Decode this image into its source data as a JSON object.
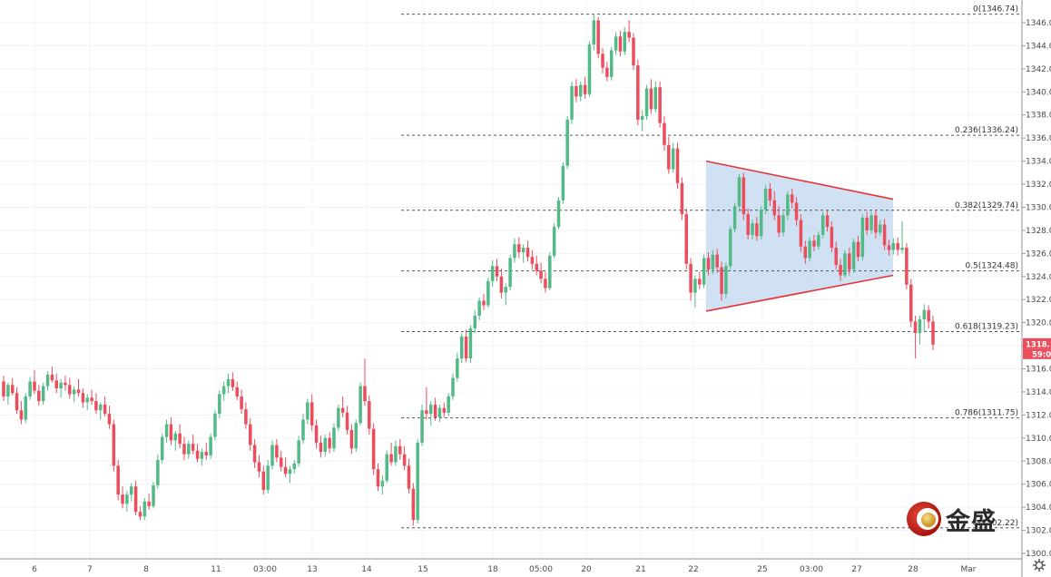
{
  "chart_data": {
    "type": "candlestick",
    "title": "",
    "y_axis": {
      "ylim": [
        1299.5,
        1348.4
      ],
      "ticks": [
        1300,
        1302,
        1304,
        1306,
        1308,
        1310,
        1312,
        1314,
        1316,
        1318,
        1320,
        1322,
        1324,
        1326,
        1328,
        1330,
        1332,
        1334,
        1336,
        1338,
        1340,
        1342,
        1344,
        1346
      ],
      "tick_labels": [
        "1300.00",
        "1302.00",
        "1304.00",
        "1306.00",
        "1308.00",
        "1310.00",
        "1312.00",
        "1314.00",
        "1316.00",
        "1318.00",
        "1320.00",
        "1322.00",
        "1324.00",
        "1326.00",
        "1328.00",
        "1330.00",
        "1332.00",
        "1334.00",
        "1336.00",
        "1338.00",
        "1340.00",
        "1342.00",
        "1344.00",
        "1346.00"
      ]
    },
    "x_axis": {
      "tick_labels": [
        "6",
        "7",
        "8",
        "11",
        "03:00",
        "13",
        "14",
        "15",
        "18",
        "05:00",
        "20",
        "21",
        "22",
        "25",
        "03:00",
        "27",
        "28",
        "Mar"
      ]
    },
    "candles_ohlc": [
      [
        1314.9,
        1315.4,
        1313.2,
        1313.6
      ],
      [
        1313.6,
        1314.8,
        1312.9,
        1314.6
      ],
      [
        1314.6,
        1315.2,
        1313.7,
        1313.9
      ],
      [
        1313.9,
        1314.4,
        1312.1,
        1312.4
      ],
      [
        1312.4,
        1313.2,
        1311.2,
        1311.6
      ],
      [
        1311.6,
        1313.9,
        1311.3,
        1313.6
      ],
      [
        1313.6,
        1315.3,
        1313.3,
        1314.9
      ],
      [
        1314.9,
        1315.9,
        1313.8,
        1314.1
      ],
      [
        1314.1,
        1314.6,
        1312.8,
        1313.2
      ],
      [
        1313.2,
        1314.8,
        1312.9,
        1314.5
      ],
      [
        1314.5,
        1315.8,
        1314.1,
        1315.5
      ],
      [
        1315.5,
        1316.2,
        1314.8,
        1315.0
      ],
      [
        1315.0,
        1315.6,
        1313.9,
        1314.3
      ],
      [
        1314.3,
        1315.1,
        1313.5,
        1314.8
      ],
      [
        1314.8,
        1315.4,
        1314.1,
        1314.6
      ],
      [
        1314.6,
        1315.2,
        1313.4,
        1313.8
      ],
      [
        1313.8,
        1314.5,
        1313.1,
        1314.2
      ],
      [
        1314.2,
        1315.1,
        1313.6,
        1313.9
      ],
      [
        1313.9,
        1314.3,
        1312.6,
        1313.1
      ],
      [
        1313.1,
        1313.8,
        1312.4,
        1313.5
      ],
      [
        1313.5,
        1314.2,
        1312.9,
        1313.2
      ],
      [
        1313.2,
        1313.9,
        1312.1,
        1312.4
      ],
      [
        1312.4,
        1313.1,
        1311.6,
        1312.9
      ],
      [
        1312.9,
        1313.6,
        1311.9,
        1312.1
      ],
      [
        1312.1,
        1312.8,
        1310.8,
        1311.2
      ],
      [
        1311.2,
        1311.6,
        1307.1,
        1307.6
      ],
      [
        1307.6,
        1308.1,
        1304.6,
        1305.1
      ],
      [
        1305.1,
        1305.8,
        1303.9,
        1304.3
      ],
      [
        1304.3,
        1305.4,
        1303.6,
        1305.1
      ],
      [
        1305.1,
        1306.1,
        1304.5,
        1305.8
      ],
      [
        1305.8,
        1306.3,
        1303.3,
        1303.6
      ],
      [
        1303.6,
        1304.1,
        1302.9,
        1303.2
      ],
      [
        1303.2,
        1304.8,
        1302.9,
        1304.5
      ],
      [
        1304.5,
        1305.2,
        1303.8,
        1304.1
      ],
      [
        1304.1,
        1306.2,
        1303.9,
        1305.9
      ],
      [
        1305.9,
        1308.6,
        1305.6,
        1308.1
      ],
      [
        1308.1,
        1310.4,
        1307.8,
        1310.1
      ],
      [
        1310.1,
        1311.6,
        1309.6,
        1311.2
      ],
      [
        1311.2,
        1311.8,
        1309.4,
        1309.8
      ],
      [
        1309.8,
        1310.6,
        1308.9,
        1310.4
      ],
      [
        1310.4,
        1311.2,
        1309.1,
        1309.5
      ],
      [
        1309.5,
        1310.1,
        1308.1,
        1308.6
      ],
      [
        1308.6,
        1309.8,
        1308.2,
        1309.5
      ],
      [
        1309.5,
        1310.3,
        1308.6,
        1308.9
      ],
      [
        1308.9,
        1309.5,
        1307.9,
        1308.2
      ],
      [
        1308.2,
        1309.1,
        1307.6,
        1308.8
      ],
      [
        1308.8,
        1309.6,
        1308.1,
        1308.5
      ],
      [
        1308.5,
        1310.4,
        1308.2,
        1310.1
      ],
      [
        1310.1,
        1312.4,
        1309.8,
        1312.1
      ],
      [
        1312.1,
        1314.1,
        1311.7,
        1313.8
      ],
      [
        1313.8,
        1314.9,
        1313.2,
        1314.5
      ],
      [
        1314.5,
        1315.6,
        1313.9,
        1315.1
      ],
      [
        1315.1,
        1315.7,
        1314.1,
        1314.4
      ],
      [
        1314.4,
        1314.9,
        1313.3,
        1313.6
      ],
      [
        1313.6,
        1314.2,
        1312.1,
        1312.5
      ],
      [
        1312.5,
        1313.1,
        1310.8,
        1311.2
      ],
      [
        1311.2,
        1311.7,
        1308.9,
        1309.4
      ],
      [
        1309.4,
        1309.9,
        1307.4,
        1307.9
      ],
      [
        1307.9,
        1308.5,
        1306.6,
        1307.1
      ],
      [
        1307.1,
        1307.6,
        1305.1,
        1305.5
      ],
      [
        1305.5,
        1308.1,
        1305.2,
        1307.6
      ],
      [
        1307.6,
        1309.8,
        1307.3,
        1309.4
      ],
      [
        1309.4,
        1309.9,
        1307.9,
        1308.3
      ],
      [
        1308.3,
        1308.9,
        1307.1,
        1307.5
      ],
      [
        1307.5,
        1308.3,
        1306.6,
        1306.9
      ],
      [
        1306.9,
        1307.6,
        1306.1,
        1307.3
      ],
      [
        1307.3,
        1308.1,
        1306.9,
        1307.8
      ],
      [
        1307.8,
        1310.2,
        1307.5,
        1309.8
      ],
      [
        1309.8,
        1312.1,
        1309.5,
        1311.6
      ],
      [
        1311.6,
        1313.4,
        1311.2,
        1313.1
      ],
      [
        1313.1,
        1313.8,
        1310.6,
        1311.1
      ],
      [
        1311.1,
        1311.6,
        1309.1,
        1309.6
      ],
      [
        1309.6,
        1310.2,
        1308.3,
        1308.8
      ],
      [
        1308.8,
        1310.3,
        1308.4,
        1310.0
      ],
      [
        1310.0,
        1310.5,
        1308.7,
        1309.1
      ],
      [
        1309.1,
        1311.3,
        1308.8,
        1310.9
      ],
      [
        1310.9,
        1312.9,
        1310.6,
        1312.6
      ],
      [
        1312.6,
        1313.6,
        1311.8,
        1312.2
      ],
      [
        1312.2,
        1312.8,
        1310.3,
        1310.7
      ],
      [
        1310.7,
        1311.2,
        1308.6,
        1309.1
      ],
      [
        1309.1,
        1311.6,
        1308.8,
        1311.3
      ],
      [
        1311.3,
        1314.8,
        1311.1,
        1314.5
      ],
      [
        1314.5,
        1316.9,
        1312.8,
        1313.2
      ],
      [
        1313.2,
        1313.7,
        1310.3,
        1310.8
      ],
      [
        1310.8,
        1311.3,
        1306.8,
        1307.3
      ],
      [
        1307.3,
        1307.8,
        1305.4,
        1305.8
      ],
      [
        1305.8,
        1306.8,
        1305.1,
        1306.3
      ],
      [
        1306.3,
        1308.9,
        1306.1,
        1308.6
      ],
      [
        1308.6,
        1309.6,
        1307.6,
        1307.9
      ],
      [
        1307.9,
        1309.8,
        1307.6,
        1309.3
      ],
      [
        1309.3,
        1309.9,
        1308.1,
        1308.6
      ],
      [
        1308.6,
        1309.3,
        1307.2,
        1307.6
      ],
      [
        1307.6,
        1308.2,
        1305.2,
        1305.6
      ],
      [
        1305.6,
        1306.1,
        1302.4,
        1302.9
      ],
      [
        1302.9,
        1309.9,
        1302.6,
        1309.6
      ],
      [
        1309.6,
        1312.9,
        1309.3,
        1312.4
      ],
      [
        1312.4,
        1314.4,
        1311.6,
        1312.1
      ],
      [
        1312.1,
        1313.2,
        1311.1,
        1312.9
      ],
      [
        1312.9,
        1313.5,
        1311.5,
        1311.8
      ],
      [
        1311.8,
        1312.9,
        1311.4,
        1312.6
      ],
      [
        1312.6,
        1313.1,
        1311.8,
        1312.2
      ],
      [
        1312.2,
        1313.9,
        1311.9,
        1313.6
      ],
      [
        1313.6,
        1315.6,
        1313.3,
        1315.2
      ],
      [
        1315.2,
        1317.4,
        1314.9,
        1316.9
      ],
      [
        1316.9,
        1319.1,
        1316.5,
        1318.8
      ],
      [
        1318.8,
        1319.4,
        1316.6,
        1316.9
      ],
      [
        1316.9,
        1319.8,
        1316.5,
        1319.5
      ],
      [
        1319.5,
        1321.1,
        1319.1,
        1320.6
      ],
      [
        1320.6,
        1322.2,
        1320.2,
        1321.9
      ],
      [
        1321.9,
        1322.5,
        1321.1,
        1321.5
      ],
      [
        1321.5,
        1323.9,
        1321.3,
        1323.6
      ],
      [
        1323.6,
        1325.4,
        1323.1,
        1324.9
      ],
      [
        1324.9,
        1325.5,
        1323.6,
        1324.0
      ],
      [
        1324.0,
        1324.7,
        1322.1,
        1322.6
      ],
      [
        1322.6,
        1323.4,
        1321.5,
        1323.1
      ],
      [
        1323.1,
        1325.9,
        1322.8,
        1325.6
      ],
      [
        1325.6,
        1327.3,
        1325.2,
        1326.8
      ],
      [
        1326.8,
        1327.4,
        1325.6,
        1326.1
      ],
      [
        1326.1,
        1326.8,
        1325.2,
        1326.5
      ],
      [
        1326.5,
        1327.1,
        1325.3,
        1325.7
      ],
      [
        1325.7,
        1326.3,
        1324.6,
        1325.1
      ],
      [
        1325.1,
        1325.8,
        1324.1,
        1324.5
      ],
      [
        1324.5,
        1325.2,
        1323.4,
        1323.8
      ],
      [
        1323.8,
        1324.4,
        1322.6,
        1323.0
      ],
      [
        1323.0,
        1326.1,
        1322.8,
        1325.8
      ],
      [
        1325.8,
        1328.6,
        1325.6,
        1328.3
      ],
      [
        1328.3,
        1330.9,
        1328.1,
        1330.6
      ],
      [
        1330.6,
        1333.9,
        1330.3,
        1333.6
      ],
      [
        1333.6,
        1337.9,
        1333.3,
        1337.6
      ],
      [
        1337.6,
        1340.9,
        1337.2,
        1340.5
      ],
      [
        1340.5,
        1341.1,
        1339.1,
        1339.6
      ],
      [
        1339.6,
        1340.9,
        1339.2,
        1340.6
      ],
      [
        1340.6,
        1341.3,
        1339.4,
        1339.8
      ],
      [
        1339.8,
        1344.4,
        1339.6,
        1344.1
      ],
      [
        1344.1,
        1346.74,
        1343.6,
        1346.2
      ],
      [
        1346.2,
        1346.5,
        1342.9,
        1343.3
      ],
      [
        1343.3,
        1343.8,
        1341.6,
        1342.1
      ],
      [
        1342.1,
        1342.6,
        1340.9,
        1341.3
      ],
      [
        1341.3,
        1343.9,
        1341.0,
        1343.6
      ],
      [
        1343.6,
        1345.2,
        1343.2,
        1344.8
      ],
      [
        1344.8,
        1345.3,
        1343.1,
        1343.5
      ],
      [
        1343.5,
        1345.6,
        1343.2,
        1345.2
      ],
      [
        1345.2,
        1346.2,
        1344.3,
        1344.7
      ],
      [
        1344.7,
        1345.1,
        1341.9,
        1342.3
      ],
      [
        1342.3,
        1342.8,
        1337.1,
        1337.6
      ],
      [
        1337.6,
        1338.4,
        1336.6,
        1337.9
      ],
      [
        1337.9,
        1340.6,
        1337.6,
        1340.3
      ],
      [
        1340.3,
        1341.1,
        1338.1,
        1338.5
      ],
      [
        1338.5,
        1340.9,
        1338.2,
        1340.4
      ],
      [
        1340.4,
        1340.9,
        1336.9,
        1337.3
      ],
      [
        1337.3,
        1337.9,
        1334.9,
        1335.4
      ],
      [
        1335.4,
        1336.1,
        1332.9,
        1333.3
      ],
      [
        1333.3,
        1335.6,
        1333.0,
        1335.1
      ],
      [
        1335.1,
        1335.6,
        1331.6,
        1332.1
      ],
      [
        1332.1,
        1332.6,
        1328.9,
        1329.4
      ],
      [
        1329.4,
        1329.9,
        1324.6,
        1325.1
      ],
      [
        1325.1,
        1325.6,
        1321.9,
        1322.6
      ],
      [
        1322.6,
        1324.1,
        1321.3,
        1323.8
      ],
      [
        1323.8,
        1324.4,
        1322.9,
        1323.3
      ],
      [
        1323.3,
        1325.9,
        1323.0,
        1325.6
      ],
      [
        1325.6,
        1326.1,
        1324.1,
        1324.6
      ],
      [
        1324.6,
        1326.3,
        1324.2,
        1325.9
      ],
      [
        1325.9,
        1326.4,
        1324.3,
        1324.8
      ],
      [
        1324.8,
        1325.3,
        1321.9,
        1322.5
      ],
      [
        1322.5,
        1325.2,
        1322.1,
        1324.9
      ],
      [
        1324.9,
        1328.4,
        1324.6,
        1328.1
      ],
      [
        1328.1,
        1330.4,
        1327.8,
        1330.1
      ],
      [
        1330.1,
        1332.9,
        1329.6,
        1332.6
      ],
      [
        1332.6,
        1333.0,
        1328.9,
        1329.4
      ],
      [
        1329.4,
        1329.9,
        1327.2,
        1327.6
      ],
      [
        1327.6,
        1328.9,
        1327.2,
        1328.6
      ],
      [
        1328.6,
        1329.2,
        1327.1,
        1327.5
      ],
      [
        1327.5,
        1330.1,
        1327.2,
        1329.8
      ],
      [
        1329.8,
        1331.9,
        1329.4,
        1331.6
      ],
      [
        1331.6,
        1332.1,
        1330.1,
        1330.6
      ],
      [
        1330.6,
        1331.4,
        1328.9,
        1329.3
      ],
      [
        1329.3,
        1330.1,
        1327.4,
        1327.8
      ],
      [
        1327.8,
        1329.6,
        1327.5,
        1329.3
      ],
      [
        1329.3,
        1331.4,
        1328.9,
        1331.1
      ],
      [
        1331.1,
        1331.6,
        1329.9,
        1330.4
      ],
      [
        1330.4,
        1330.9,
        1328.4,
        1328.9
      ],
      [
        1328.9,
        1329.4,
        1326.1,
        1326.6
      ],
      [
        1326.6,
        1327.1,
        1325.1,
        1325.6
      ],
      [
        1325.6,
        1327.4,
        1325.3,
        1327.1
      ],
      [
        1327.1,
        1327.6,
        1326.2,
        1326.6
      ],
      [
        1326.6,
        1327.9,
        1326.3,
        1327.6
      ],
      [
        1327.6,
        1329.6,
        1327.3,
        1329.3
      ],
      [
        1329.3,
        1329.8,
        1327.9,
        1328.3
      ],
      [
        1328.3,
        1328.8,
        1326.1,
        1326.5
      ],
      [
        1326.5,
        1327.0,
        1324.6,
        1325.0
      ],
      [
        1325.0,
        1325.5,
        1323.6,
        1324.1
      ],
      [
        1324.1,
        1326.3,
        1323.9,
        1326.0
      ],
      [
        1326.0,
        1326.5,
        1324.1,
        1324.6
      ],
      [
        1324.6,
        1327.3,
        1324.3,
        1327.0
      ],
      [
        1327.0,
        1327.5,
        1325.3,
        1325.7
      ],
      [
        1325.7,
        1329.4,
        1325.4,
        1329.1
      ],
      [
        1329.1,
        1329.6,
        1327.6,
        1328.0
      ],
      [
        1328.0,
        1329.6,
        1327.7,
        1329.3
      ],
      [
        1329.3,
        1329.8,
        1327.3,
        1327.8
      ],
      [
        1327.8,
        1328.9,
        1327.5,
        1328.5
      ],
      [
        1328.5,
        1329.0,
        1326.3,
        1326.7
      ],
      [
        1326.7,
        1327.2,
        1325.8,
        1326.3
      ],
      [
        1326.3,
        1327.3,
        1325.9,
        1326.9
      ],
      [
        1326.9,
        1327.4,
        1325.8,
        1326.3
      ],
      [
        1326.3,
        1328.8,
        1326.0,
        1326.5
      ],
      [
        1326.5,
        1326.9,
        1322.9,
        1323.3
      ],
      [
        1323.3,
        1323.8,
        1319.6,
        1320.1
      ],
      [
        1320.1,
        1320.6,
        1316.9,
        1319.1
      ],
      [
        1319.1,
        1320.6,
        1318.1,
        1320.3
      ],
      [
        1320.3,
        1321.6,
        1319.2,
        1321.1
      ],
      [
        1321.1,
        1321.5,
        1319.5,
        1320.1
      ],
      [
        1320.1,
        1320.6,
        1317.6,
        1318.1
      ]
    ],
    "fibonacci": [
      {
        "label": "0(1346.74)",
        "value": 1346.74
      },
      {
        "label": "0.236(1336.24)",
        "value": 1336.24
      },
      {
        "label": "0.382(1329.74)",
        "value": 1329.74
      },
      {
        "label": "0.5(1324.48)",
        "value": 1324.48
      },
      {
        "label": "0.618(1319.23)",
        "value": 1319.23
      },
      {
        "label": "0.786(1311.75)",
        "value": 1311.75
      },
      {
        "label": "1(1302.22)",
        "value": 1302.22
      }
    ],
    "triangle_pattern": {
      "upper_start": 1334.0,
      "upper_end": 1330.7,
      "lower_start": 1321.0,
      "lower_end": 1324.1
    },
    "current_price": {
      "value": 1318.1,
      "label": "1318.10",
      "countdown": "59:09"
    },
    "colors": {
      "up": "#53b987",
      "down": "#eb4d5c",
      "fib_line": "#555555",
      "triangle_line": "#e8333a",
      "triangle_fill": "#bfd7ee"
    }
  },
  "watermark": {
    "text": "金盛",
    "icon": "jinsheng-logo-icon"
  },
  "settings": {
    "icon": "gear-icon"
  }
}
